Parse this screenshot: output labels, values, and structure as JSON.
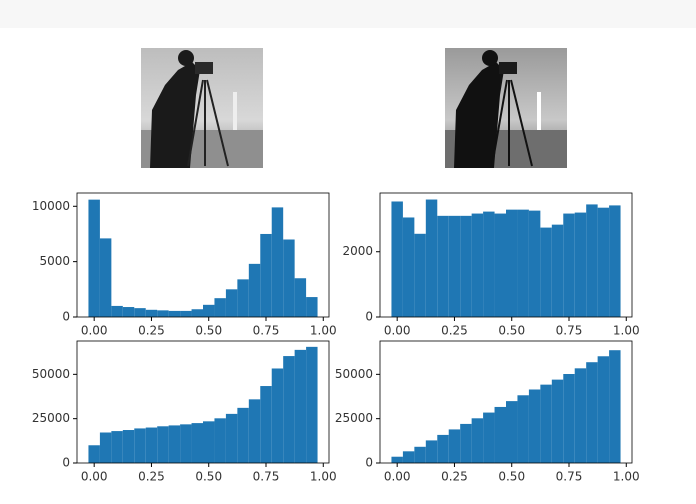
{
  "chart_data": [
    {
      "type": "histogram",
      "color": "#1f77b4",
      "bins": [
        -0.025,
        0.025,
        0.075,
        0.125,
        0.175,
        0.225,
        0.275,
        0.325,
        0.375,
        0.425,
        0.475,
        0.525,
        0.575,
        0.625,
        0.675,
        0.725,
        0.775,
        0.825,
        0.875,
        0.925,
        0.975
      ],
      "values": [
        10600,
        7100,
        1000,
        900,
        800,
        650,
        600,
        550,
        550,
        700,
        1100,
        1700,
        2500,
        3400,
        4800,
        7500,
        9900,
        7000,
        3500,
        1800
      ],
      "xlim": [
        -0.075,
        1.025
      ],
      "ylim": [
        0,
        11200
      ],
      "xticks": [
        {
          "value": 0,
          "label": "0.00"
        },
        {
          "value": 0.25,
          "label": "0.25"
        },
        {
          "value": 0.5,
          "label": "0.50"
        },
        {
          "value": 0.75,
          "label": "0.75"
        },
        {
          "value": 1,
          "label": "1.00"
        }
      ],
      "yticks": [
        0,
        5000,
        10000
      ]
    },
    {
      "type": "histogram",
      "color": "#1f77b4",
      "bins": [
        -0.025,
        0.025,
        0.075,
        0.125,
        0.175,
        0.225,
        0.275,
        0.325,
        0.375,
        0.425,
        0.475,
        0.525,
        0.575,
        0.625,
        0.675,
        0.725,
        0.775,
        0.825,
        0.875,
        0.925,
        0.975
      ],
      "values": [
        3540,
        3050,
        2550,
        3600,
        3100,
        3100,
        3100,
        3170,
        3230,
        3170,
        3290,
        3290,
        3260,
        2740,
        2830,
        3170,
        3200,
        3450,
        3350,
        3420
      ],
      "xlim": [
        -0.075,
        1.025
      ],
      "ylim": [
        0,
        3800
      ],
      "xticks": [
        {
          "value": 0,
          "label": "0.00"
        },
        {
          "value": 0.25,
          "label": "0.25"
        },
        {
          "value": 0.5,
          "label": "0.50"
        },
        {
          "value": 0.75,
          "label": "0.75"
        },
        {
          "value": 1,
          "label": "1.00"
        }
      ],
      "yticks": [
        0,
        2000
      ]
    },
    {
      "type": "histogram",
      "color": "#1f77b4",
      "bins": [
        -0.025,
        0.025,
        0.075,
        0.125,
        0.175,
        0.225,
        0.275,
        0.325,
        0.375,
        0.425,
        0.475,
        0.525,
        0.575,
        0.625,
        0.675,
        0.725,
        0.775,
        0.825,
        0.875,
        0.925,
        0.975
      ],
      "values": [
        10000,
        17200,
        18000,
        18600,
        19500,
        20000,
        20700,
        21200,
        21800,
        22500,
        23500,
        25200,
        27700,
        31100,
        35900,
        43400,
        53300,
        60300,
        63800,
        65500
      ],
      "xlim": [
        -0.075,
        1.025
      ],
      "ylim": [
        0,
        68800
      ],
      "xticks": [
        {
          "value": 0,
          "label": "0.00"
        },
        {
          "value": 0.25,
          "label": "0.25"
        },
        {
          "value": 0.5,
          "label": "0.50"
        },
        {
          "value": 0.75,
          "label": "0.75"
        },
        {
          "value": 1,
          "label": "1.00"
        }
      ],
      "yticks": [
        0,
        25000,
        50000
      ]
    },
    {
      "type": "histogram",
      "color": "#1f77b4",
      "bins": [
        -0.025,
        0.025,
        0.075,
        0.125,
        0.175,
        0.225,
        0.275,
        0.325,
        0.375,
        0.425,
        0.475,
        0.525,
        0.575,
        0.625,
        0.675,
        0.725,
        0.775,
        0.825,
        0.875,
        0.925,
        0.975
      ],
      "values": [
        3540,
        6590,
        9140,
        12740,
        15840,
        18940,
        22040,
        25210,
        28440,
        31610,
        34900,
        38190,
        41450,
        44190,
        47020,
        50190,
        53390,
        56840,
        60190,
        63610
      ],
      "xlim": [
        -0.075,
        1.025
      ],
      "ylim": [
        0,
        68800
      ],
      "xticks": [
        {
          "value": 0,
          "label": "0.00"
        },
        {
          "value": 0.25,
          "label": "0.25"
        },
        {
          "value": 0.5,
          "label": "0.50"
        },
        {
          "value": 0.75,
          "label": "0.75"
        },
        {
          "value": 1,
          "label": "1.00"
        }
      ],
      "yticks": [
        0,
        25000,
        50000
      ]
    }
  ]
}
